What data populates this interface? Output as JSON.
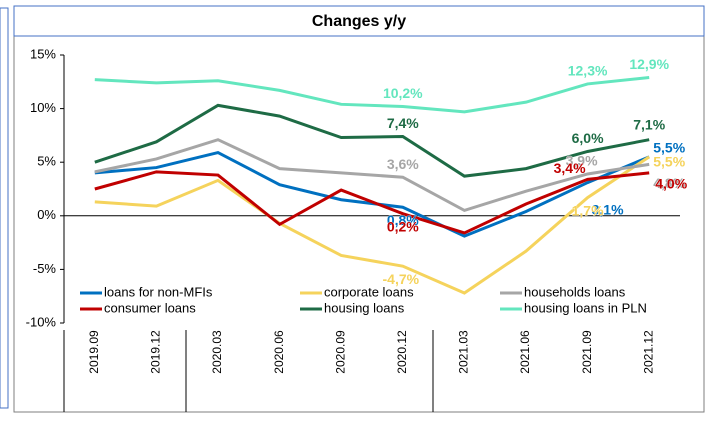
{
  "chart_data": {
    "type": "line",
    "title": "Changes y/y",
    "categories": [
      "2019.09",
      "2019.12",
      "2020.03",
      "2020.06",
      "2020.09",
      "2020.12",
      "2021.03",
      "2021.06",
      "2021.09",
      "2021.12"
    ],
    "ylim": [
      -10,
      15
    ],
    "yticks": [
      {
        "value": -10,
        "label": "-10%"
      },
      {
        "value": -5,
        "label": "-5%"
      },
      {
        "value": 0,
        "label": "0%"
      },
      {
        "value": 5,
        "label": "5%"
      },
      {
        "value": 10,
        "label": "10%"
      },
      {
        "value": 15,
        "label": "15%"
      }
    ],
    "series": [
      {
        "name": "loans for non-MFIs",
        "color": "#0070c0",
        "values": [
          4.0,
          4.5,
          5.9,
          2.9,
          1.5,
          0.8,
          -1.9,
          0.4,
          3.1,
          5.5
        ],
        "value_labels": [
          null,
          null,
          null,
          null,
          null,
          "0,8%",
          null,
          null,
          "3,1%",
          "5,5%"
        ]
      },
      {
        "name": "corporate loans",
        "color": "#f5d35c",
        "values": [
          1.3,
          0.9,
          3.3,
          -0.7,
          -3.7,
          -4.7,
          -7.2,
          -3.3,
          1.7,
          5.5
        ],
        "value_labels": [
          null,
          null,
          null,
          null,
          null,
          "-4,7%",
          null,
          null,
          "1,7%",
          "5,5%"
        ]
      },
      {
        "name": "households loans",
        "color": "#a6a6a6",
        "values": [
          4.1,
          5.3,
          7.1,
          4.4,
          4.0,
          3.6,
          0.5,
          2.3,
          3.9,
          4.8
        ],
        "value_labels": [
          null,
          null,
          null,
          null,
          null,
          "3,6%",
          null,
          null,
          "3,9%",
          "4,8%"
        ]
      },
      {
        "name": "consumer loans",
        "color": "#c00000",
        "values": [
          2.5,
          4.1,
          3.8,
          -0.8,
          2.4,
          0.2,
          -1.6,
          1.1,
          3.4,
          4.0
        ],
        "value_labels": [
          null,
          null,
          null,
          null,
          null,
          "0,2%",
          null,
          null,
          "3,4%",
          "4,0%"
        ]
      },
      {
        "name": "housing loans",
        "color": "#1e6b45",
        "values": [
          5.0,
          6.9,
          10.3,
          9.3,
          7.3,
          7.4,
          3.7,
          4.4,
          6.0,
          7.1
        ],
        "value_labels": [
          null,
          null,
          null,
          null,
          null,
          "7,4%",
          null,
          null,
          "6,0%",
          "7,1%"
        ]
      },
      {
        "name": "housing loans in PLN",
        "color": "#63e6be",
        "values": [
          12.7,
          12.4,
          12.6,
          11.7,
          10.4,
          10.2,
          9.7,
          10.6,
          12.3,
          12.9
        ],
        "value_labels": [
          null,
          null,
          null,
          null,
          null,
          "10,2%",
          null,
          null,
          "12,3%",
          "12,9%"
        ]
      }
    ]
  }
}
